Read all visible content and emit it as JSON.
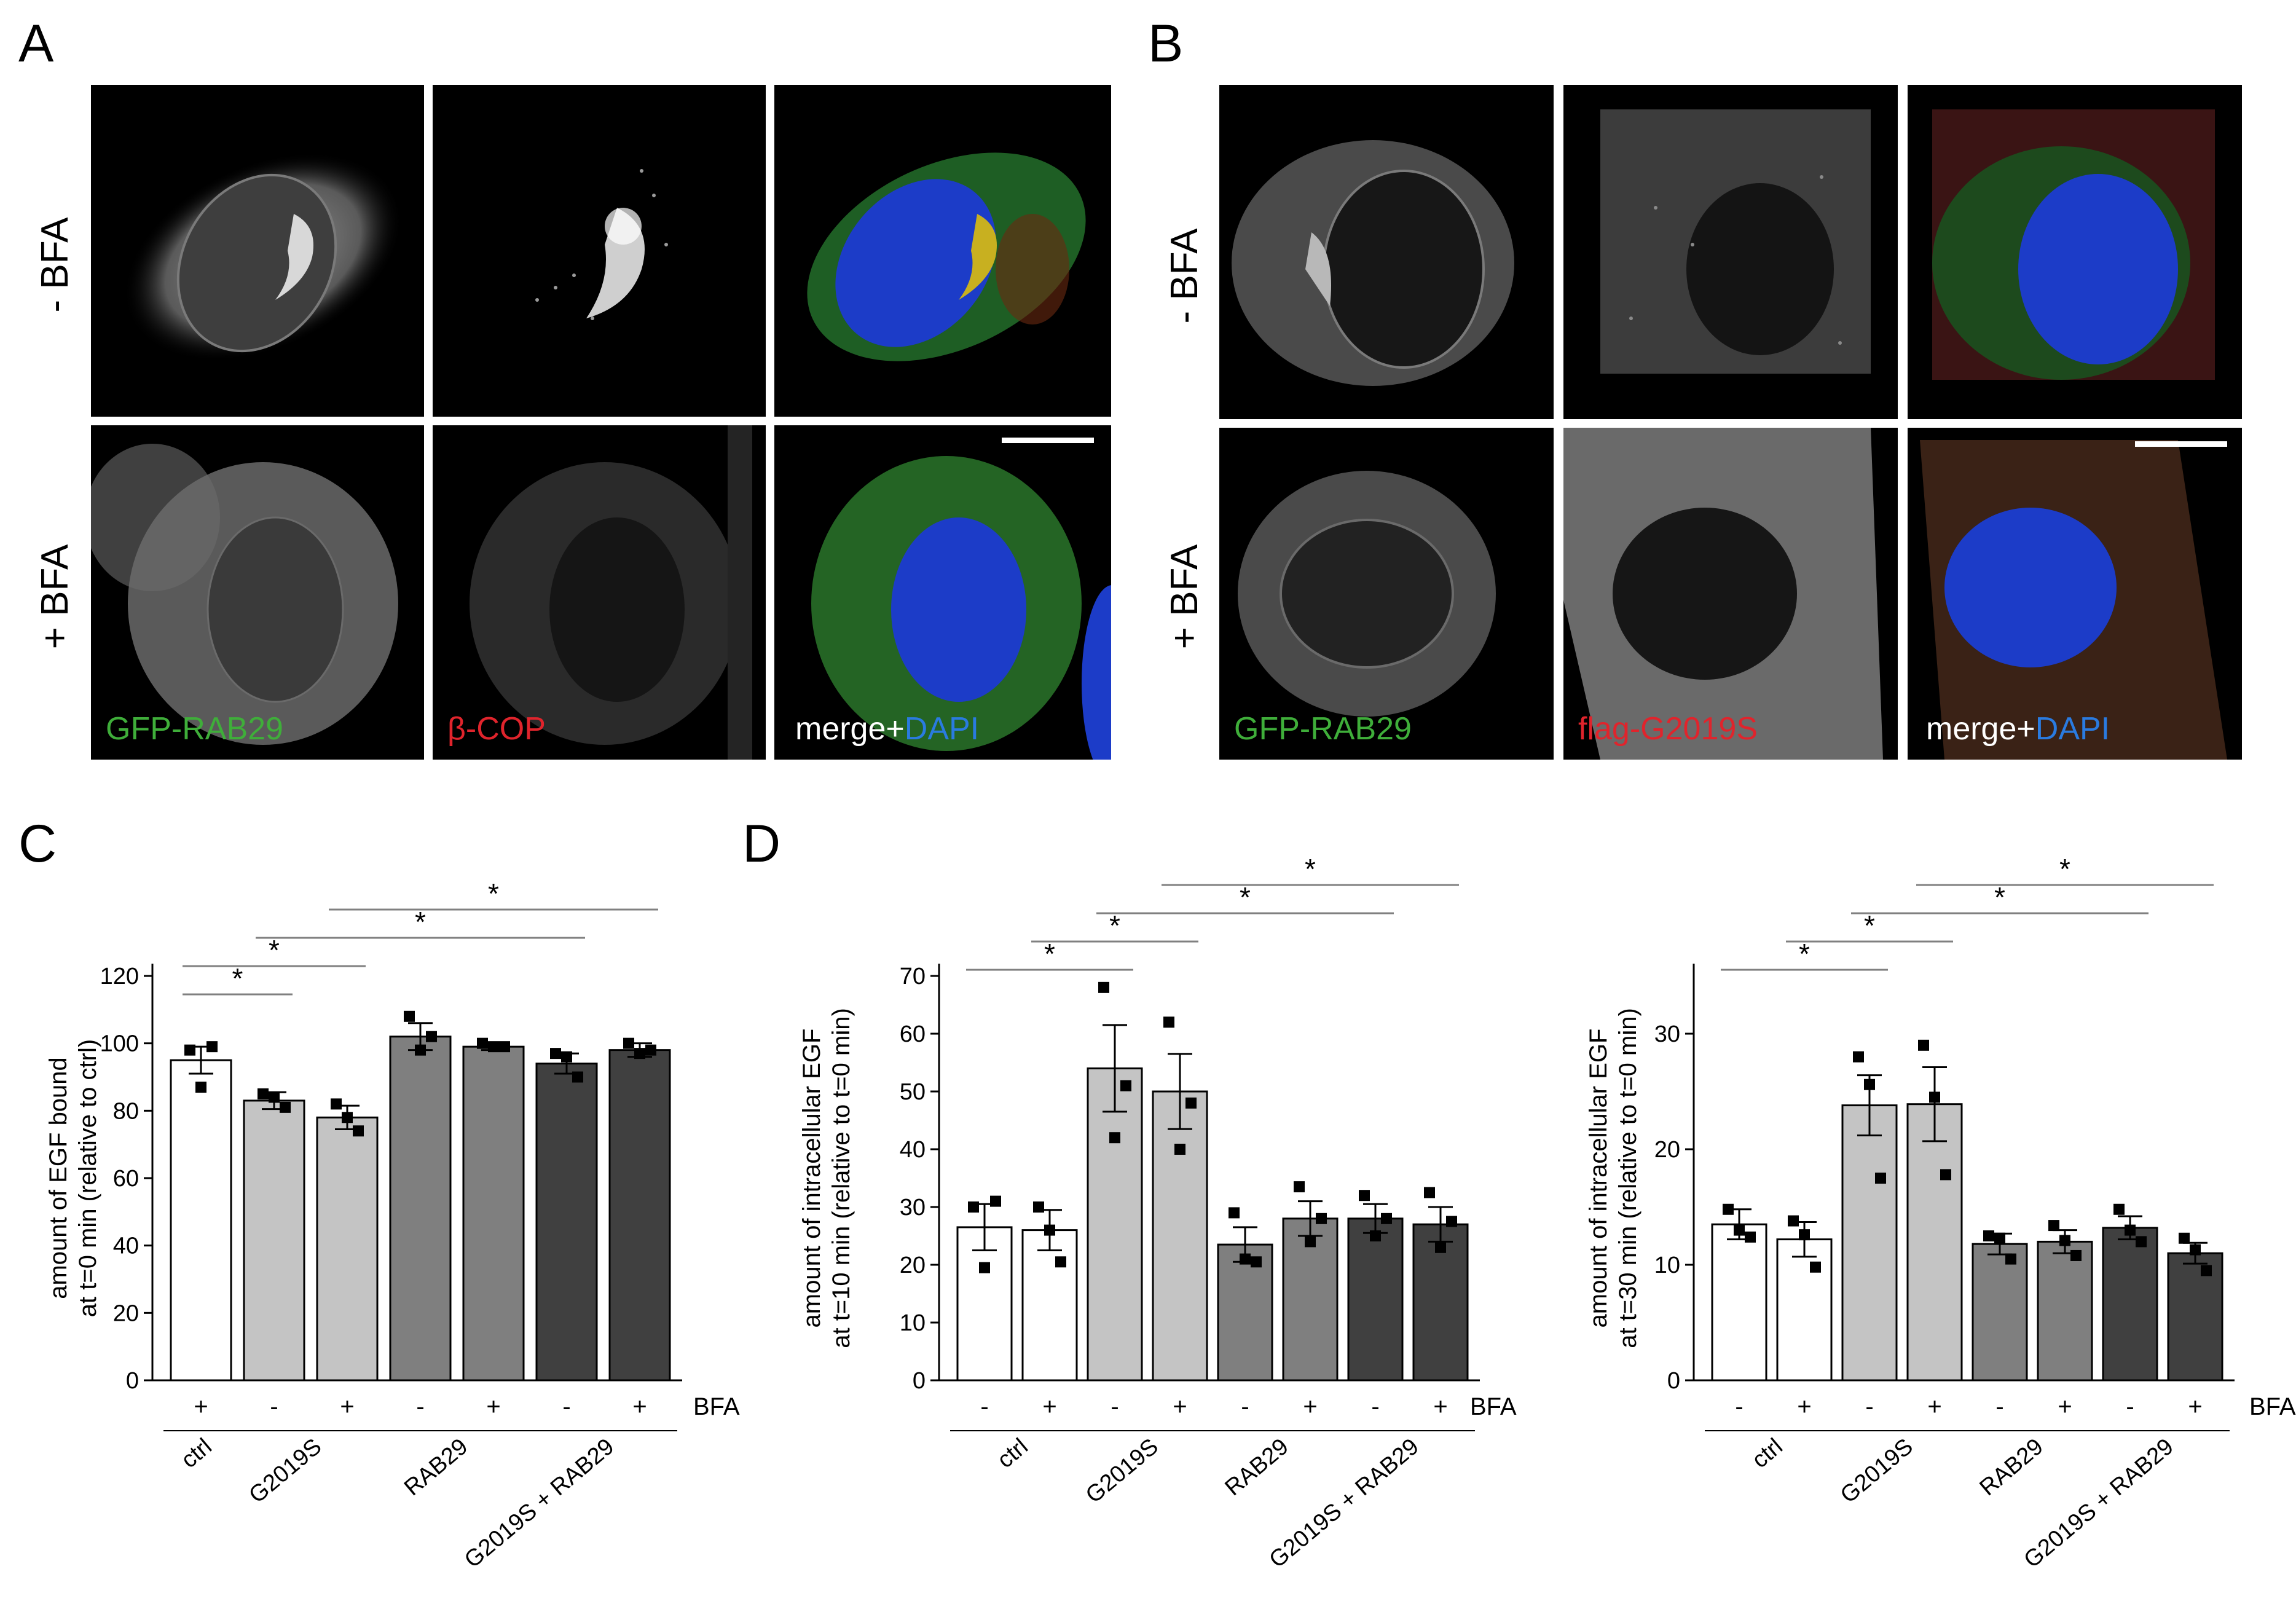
{
  "panel_letters": {
    "A": "A",
    "B": "B",
    "C": "C",
    "D": "D"
  },
  "panel_a": {
    "rows": [
      "- BFA",
      "+ BFA"
    ],
    "captions": [
      {
        "text": "GFP-RAB29",
        "color": "#3fae3a"
      },
      {
        "text": "β-COP",
        "color": "#e0242c"
      },
      {
        "merge": "merge+",
        "dapi": "DAPI",
        "color": "#ffffff",
        "dapi_color": "#2a7be0"
      }
    ]
  },
  "panel_b": {
    "rows": [
      "- BFA",
      "+ BFA"
    ],
    "captions": [
      {
        "text": "GFP-RAB29",
        "color": "#3fae3a"
      },
      {
        "text": "flag-G2019S",
        "color": "#e0242c"
      },
      {
        "merge": "merge+",
        "dapi": "DAPI",
        "color": "#ffffff",
        "dapi_color": "#2a7be0"
      }
    ]
  },
  "chart_data": [
    {
      "id": "C",
      "type": "bar",
      "ylabel": "amount of EGF bound\nat t=0 min (relative to ctrl)",
      "ylim": [
        0,
        120
      ],
      "yticks": [
        0,
        20,
        40,
        60,
        80,
        100,
        120
      ],
      "treatment_label": "BFA",
      "treatments": [
        "+",
        "-",
        "+",
        "-",
        "+",
        "-",
        "+"
      ],
      "groups": [
        {
          "label": "ctrl",
          "bars": [
            0
          ]
        },
        {
          "label": "G2019S",
          "bars": [
            1,
            2
          ]
        },
        {
          "label": "RAB29",
          "bars": [
            3,
            4
          ]
        },
        {
          "label": "G2019S + RAB29",
          "bars": [
            5,
            6
          ]
        }
      ],
      "values": [
        95,
        83,
        78,
        102,
        99,
        94,
        98
      ],
      "errors": [
        4,
        2.5,
        3.5,
        4,
        1,
        3,
        2
      ],
      "points": [
        [
          98,
          99,
          87
        ],
        [
          85,
          81,
          84
        ],
        [
          82,
          74,
          78
        ],
        [
          108,
          102,
          98
        ],
        [
          100,
          99,
          99
        ],
        [
          97,
          90,
          96
        ],
        [
          100,
          98,
          97
        ]
      ],
      "bar_colors": [
        "#ffffff",
        "#c4c4c4",
        "#c4c4c4",
        "#7f7f7f",
        "#7f7f7f",
        "#404040",
        "#404040"
      ],
      "significance": [
        {
          "from": 0,
          "to": 1,
          "label": "*"
        },
        {
          "from": 0,
          "to": 2,
          "label": "*"
        },
        {
          "from": 1,
          "to": 5,
          "label": "*"
        },
        {
          "from": 2,
          "to": 6,
          "label": "*"
        }
      ]
    },
    {
      "id": "D1",
      "type": "bar",
      "ylabel": "amount of intracellular EGF\nat t=10 min (relative to t=0 min)",
      "ylim": [
        0,
        70
      ],
      "yticks": [
        0,
        10,
        20,
        30,
        40,
        50,
        60,
        70
      ],
      "treatment_label": "BFA",
      "treatments": [
        "-",
        "+",
        "-",
        "+",
        "-",
        "+",
        "-",
        "+"
      ],
      "groups": [
        {
          "label": "ctrl",
          "bars": [
            0,
            1
          ]
        },
        {
          "label": "G2019S",
          "bars": [
            2,
            3
          ]
        },
        {
          "label": "RAB29",
          "bars": [
            4,
            5
          ]
        },
        {
          "label": "G2019S + RAB29",
          "bars": [
            6,
            7
          ]
        }
      ],
      "values": [
        26.5,
        26,
        54,
        50,
        23.5,
        28,
        28,
        27
      ],
      "errors": [
        4,
        3.5,
        7.5,
        6.5,
        3,
        3,
        2.5,
        3
      ],
      "points": [
        [
          30,
          31,
          19.5
        ],
        [
          30,
          20.5,
          26
        ],
        [
          68,
          51,
          42
        ],
        [
          62,
          48,
          40
        ],
        [
          29,
          20.5,
          21
        ],
        [
          33.5,
          28,
          24
        ],
        [
          32,
          28,
          25
        ],
        [
          32.5,
          27.5,
          23
        ]
      ],
      "bar_colors": [
        "#ffffff",
        "#ffffff",
        "#c4c4c4",
        "#c4c4c4",
        "#7f7f7f",
        "#7f7f7f",
        "#404040",
        "#404040"
      ],
      "significance": [
        {
          "from": 0,
          "to": 2,
          "label": "*"
        },
        {
          "from": 1,
          "to": 3,
          "label": "*"
        },
        {
          "from": 2,
          "to": 6,
          "label": "*"
        },
        {
          "from": 3,
          "to": 7,
          "label": "*"
        }
      ]
    },
    {
      "id": "D2",
      "type": "bar",
      "ylabel": "amount of intracellular EGF\nat t=30 min (relative to t=0 min)",
      "ylim": [
        0,
        35
      ],
      "yticks": [
        0,
        10,
        20,
        30
      ],
      "treatment_label": "BFA",
      "treatments": [
        "-",
        "+",
        "-",
        "+",
        "-",
        "+",
        "-",
        "+"
      ],
      "groups": [
        {
          "label": "ctrl",
          "bars": [
            0,
            1
          ]
        },
        {
          "label": "G2019S",
          "bars": [
            2,
            3
          ]
        },
        {
          "label": "RAB29",
          "bars": [
            4,
            5
          ]
        },
        {
          "label": "G2019S + RAB29",
          "bars": [
            6,
            7
          ]
        }
      ],
      "values": [
        13.5,
        12.2,
        23.8,
        23.9,
        11.8,
        12,
        13.2,
        11
      ],
      "errors": [
        1.3,
        1.5,
        2.6,
        3.2,
        0.9,
        1,
        1,
        0.9
      ],
      "points": [
        [
          14.8,
          12.4,
          13
        ],
        [
          13.8,
          9.8,
          12.6
        ],
        [
          28,
          17.5,
          25.6
        ],
        [
          29,
          17.8,
          24.5
        ],
        [
          12.5,
          10.5,
          12.3
        ],
        [
          13.4,
          10.8,
          12.1
        ],
        [
          14.8,
          12,
          13
        ],
        [
          12.3,
          9.5,
          11.3
        ]
      ],
      "bar_colors": [
        "#ffffff",
        "#ffffff",
        "#c4c4c4",
        "#c4c4c4",
        "#7f7f7f",
        "#7f7f7f",
        "#404040",
        "#404040"
      ],
      "significance": [
        {
          "from": 0,
          "to": 2,
          "label": "*"
        },
        {
          "from": 1,
          "to": 3,
          "label": "*"
        },
        {
          "from": 2,
          "to": 6,
          "label": "*"
        },
        {
          "from": 3,
          "to": 7,
          "label": "*"
        }
      ]
    }
  ]
}
